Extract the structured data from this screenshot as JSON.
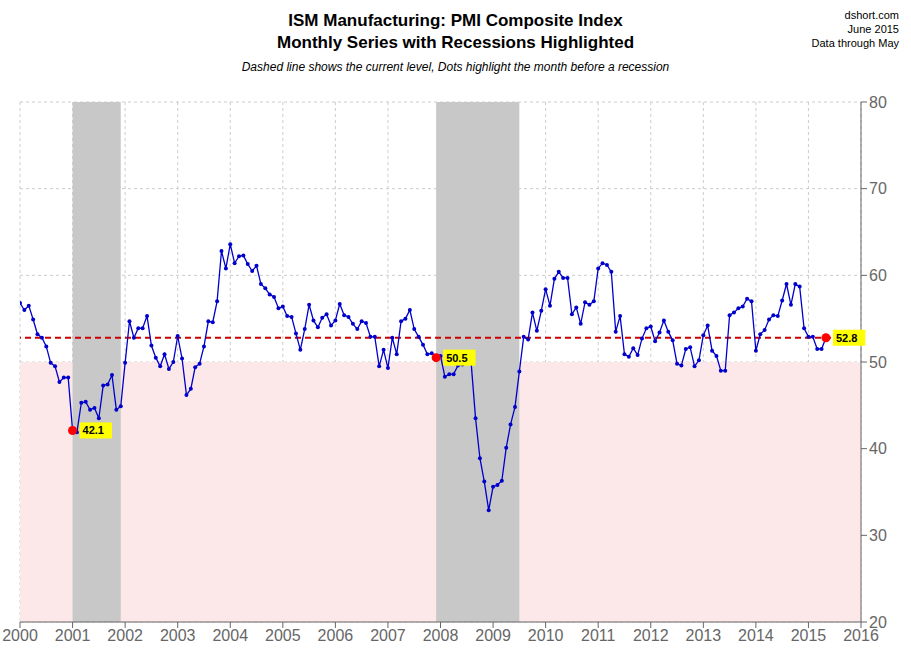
{
  "chart_data": {
    "type": "line",
    "title": [
      "ISM Manufacturing: PMI Composite Index",
      "Monthly Series with Recessions Highlighted"
    ],
    "subtitle": "Dashed line shows the current level, Dots highlight the month before a recession",
    "xlim": [
      2000,
      2016
    ],
    "xticks": [
      2000,
      2001,
      2002,
      2003,
      2004,
      2005,
      2006,
      2007,
      2008,
      2009,
      2010,
      2011,
      2012,
      2013,
      2014,
      2015,
      2016
    ],
    "ylim": [
      20,
      80
    ],
    "yticks": [
      20,
      30,
      40,
      50,
      60,
      70,
      80
    ],
    "grid": true,
    "series": [
      {
        "type": "line",
        "color": "#0000cc",
        "marker": "circle",
        "x": [
          2000.0,
          2000.083,
          2000.167,
          2000.25,
          2000.333,
          2000.417,
          2000.5,
          2000.583,
          2000.667,
          2000.75,
          2000.833,
          2000.917,
          2001.0,
          2001.083,
          2001.167,
          2001.25,
          2001.333,
          2001.417,
          2001.5,
          2001.583,
          2001.667,
          2001.75,
          2001.833,
          2001.917,
          2002.0,
          2002.083,
          2002.167,
          2002.25,
          2002.333,
          2002.417,
          2002.5,
          2002.583,
          2002.667,
          2002.75,
          2002.833,
          2002.917,
          2003.0,
          2003.083,
          2003.167,
          2003.25,
          2003.333,
          2003.417,
          2003.5,
          2003.583,
          2003.667,
          2003.75,
          2003.833,
          2003.917,
          2004.0,
          2004.083,
          2004.167,
          2004.25,
          2004.333,
          2004.417,
          2004.5,
          2004.583,
          2004.667,
          2004.75,
          2004.833,
          2004.917,
          2005.0,
          2005.083,
          2005.167,
          2005.25,
          2005.333,
          2005.417,
          2005.5,
          2005.583,
          2005.667,
          2005.75,
          2005.833,
          2005.917,
          2006.0,
          2006.083,
          2006.167,
          2006.25,
          2006.333,
          2006.417,
          2006.5,
          2006.583,
          2006.667,
          2006.75,
          2006.833,
          2006.917,
          2007.0,
          2007.083,
          2007.167,
          2007.25,
          2007.333,
          2007.417,
          2007.5,
          2007.583,
          2007.667,
          2007.75,
          2007.833,
          2007.917,
          2008.0,
          2008.083,
          2008.167,
          2008.25,
          2008.333,
          2008.417,
          2008.5,
          2008.583,
          2008.667,
          2008.75,
          2008.833,
          2008.917,
          2009.0,
          2009.083,
          2009.167,
          2009.25,
          2009.333,
          2009.417,
          2009.5,
          2009.583,
          2009.667,
          2009.75,
          2009.833,
          2009.917,
          2010.0,
          2010.083,
          2010.167,
          2010.25,
          2010.333,
          2010.417,
          2010.5,
          2010.583,
          2010.667,
          2010.75,
          2010.833,
          2010.917,
          2011.0,
          2011.083,
          2011.167,
          2011.25,
          2011.333,
          2011.417,
          2011.5,
          2011.583,
          2011.667,
          2011.75,
          2011.833,
          2011.917,
          2012.0,
          2012.083,
          2012.167,
          2012.25,
          2012.333,
          2012.417,
          2012.5,
          2012.583,
          2012.667,
          2012.75,
          2012.833,
          2012.917,
          2013.0,
          2013.083,
          2013.167,
          2013.25,
          2013.333,
          2013.417,
          2013.5,
          2013.583,
          2013.667,
          2013.75,
          2013.833,
          2013.917,
          2014.0,
          2014.083,
          2014.167,
          2014.25,
          2014.333,
          2014.417,
          2014.5,
          2014.583,
          2014.667,
          2014.75,
          2014.833,
          2014.917,
          2015.0,
          2015.083,
          2015.167,
          2015.25,
          2015.333
        ],
        "values": [
          56.8,
          56.0,
          56.5,
          54.9,
          53.2,
          52.8,
          51.8,
          49.9,
          49.5,
          47.7,
          48.2,
          48.2,
          42.1,
          41.9,
          45.3,
          45.4,
          44.5,
          44.7,
          43.5,
          47.3,
          47.4,
          48.5,
          44.5,
          44.9,
          49.9,
          54.7,
          52.8,
          53.9,
          53.9,
          55.3,
          51.9,
          50.5,
          49.5,
          50.9,
          49.2,
          50.0,
          53.0,
          50.4,
          46.2,
          46.9,
          49.4,
          49.8,
          51.8,
          54.7,
          54.6,
          57.0,
          62.8,
          60.8,
          63.6,
          61.4,
          62.2,
          62.3,
          61.3,
          60.5,
          61.1,
          59.0,
          58.5,
          57.8,
          57.5,
          56.2,
          56.4,
          55.3,
          55.2,
          53.3,
          51.4,
          53.8,
          56.6,
          54.8,
          54.0,
          55.1,
          55.5,
          54.2,
          54.8,
          56.7,
          55.4,
          55.2,
          54.4,
          53.8,
          54.7,
          54.5,
          52.9,
          52.9,
          49.5,
          51.4,
          49.3,
          52.8,
          50.9,
          54.7,
          55.0,
          56.0,
          53.8,
          52.9,
          52.0,
          50.9,
          51.0,
          50.5,
          50.7,
          48.3,
          48.6,
          48.6,
          49.6,
          49.7,
          50.0,
          49.9,
          43.5,
          38.9,
          36.2,
          32.9,
          35.6,
          35.8,
          36.3,
          40.1,
          42.8,
          44.8,
          48.9,
          52.9,
          52.6,
          55.7,
          53.6,
          55.9,
          58.4,
          56.5,
          59.6,
          60.4,
          59.7,
          59.7,
          55.5,
          56.3,
          54.4,
          56.9,
          56.6,
          57.0,
          60.8,
          61.4,
          61.2,
          60.4,
          53.5,
          55.3,
          50.9,
          50.6,
          51.6,
          50.8,
          52.7,
          53.9,
          54.1,
          52.4,
          53.4,
          54.8,
          53.5,
          52.5,
          49.8,
          49.6,
          51.5,
          51.7,
          49.5,
          50.2,
          53.1,
          54.2,
          51.3,
          50.7,
          49.0,
          49.0,
          55.4,
          55.7,
          56.2,
          56.4,
          57.3,
          57.0,
          51.3,
          53.2,
          53.7,
          54.9,
          55.4,
          55.3,
          57.1,
          59.0,
          56.6,
          59.0,
          58.7,
          53.9,
          52.9,
          52.9,
          51.5,
          51.5,
          52.8
        ]
      },
      {
        "type": "scatter",
        "color": "#ff0000",
        "marker": "circle",
        "x": [
          2001.0,
          2007.917,
          2015.333
        ],
        "values": [
          42.1,
          50.5,
          52.8
        ]
      }
    ],
    "annotations": [
      {
        "type": "band",
        "y": [
          20,
          50
        ],
        "color": "#fce8e8"
      },
      {
        "type": "span",
        "x": [
          2001.0,
          2001.917
        ],
        "color": "#c8c8c8"
      },
      {
        "type": "span",
        "x": [
          2007.917,
          2009.5
        ],
        "color": "#c8c8c8"
      },
      {
        "type": "hline",
        "y": 52.8,
        "color": "#cc0000",
        "line_style": "dashed"
      },
      {
        "type": "label",
        "x": 2001.0,
        "y": 42.1,
        "text": "42.1",
        "color": "#ffff00"
      },
      {
        "type": "label",
        "x": 2007.917,
        "y": 50.5,
        "text": "50.5",
        "color": "#ffff00"
      },
      {
        "type": "label",
        "x": 2015.333,
        "y": 52.8,
        "text": "52.8",
        "color": "#ffff00"
      },
      {
        "type": "watermark",
        "text": "dshort.com"
      },
      {
        "type": "watermark",
        "text": "June 2015"
      },
      {
        "type": "watermark",
        "text": "Data through May"
      }
    ]
  }
}
